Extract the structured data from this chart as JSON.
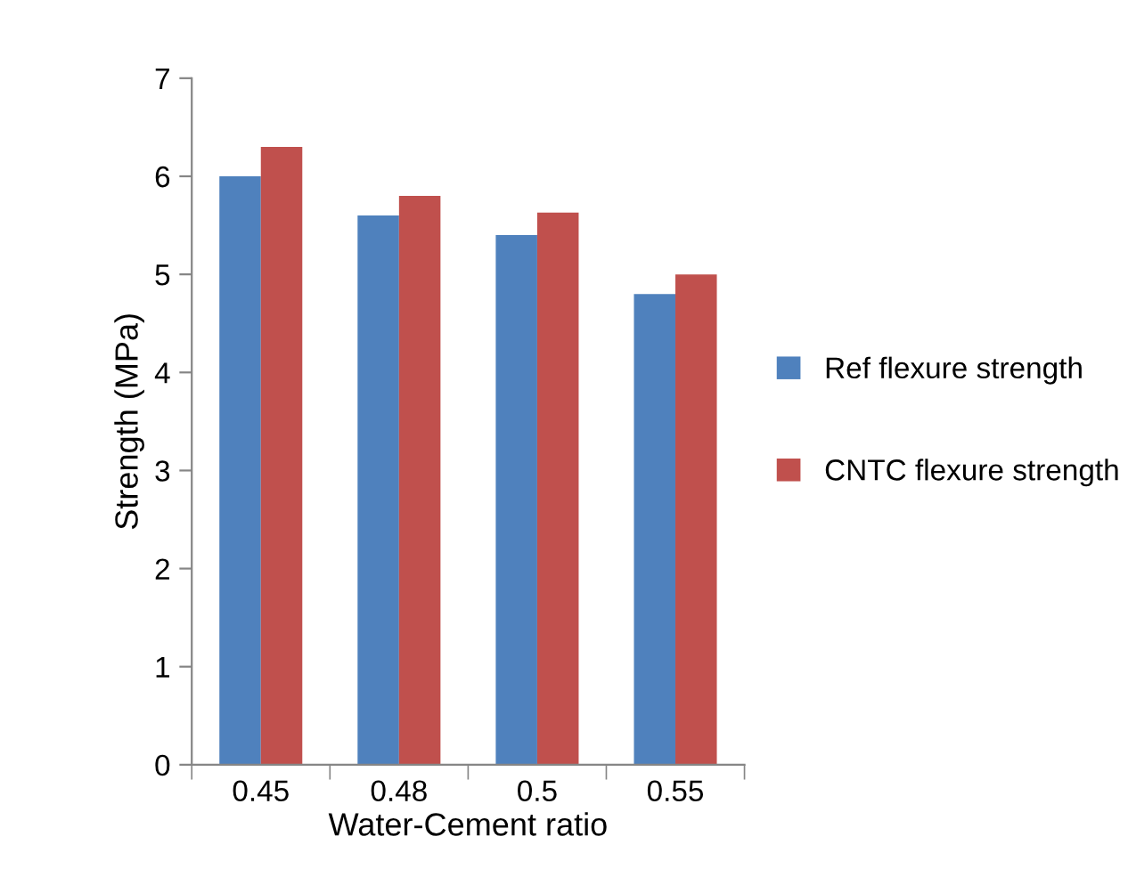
{
  "chart_data": {
    "type": "bar",
    "xlabel": "Water-Cement ratio",
    "ylabel": "Strength (MPa)",
    "categories": [
      "0.45",
      "0.48",
      "0.5",
      "0.55"
    ],
    "series": [
      {
        "name": "Ref flexure strength",
        "color": "#4f81bd",
        "values": [
          6.0,
          5.6,
          5.4,
          4.8
        ]
      },
      {
        "name": "CNTC flexure strength",
        "color": "#c0504d",
        "values": [
          6.3,
          5.8,
          5.63,
          5.0
        ]
      }
    ],
    "ylim": [
      0,
      7
    ],
    "yticks": [
      0,
      1,
      2,
      3,
      4,
      5,
      6,
      7
    ],
    "grid": false,
    "legend": "right"
  }
}
